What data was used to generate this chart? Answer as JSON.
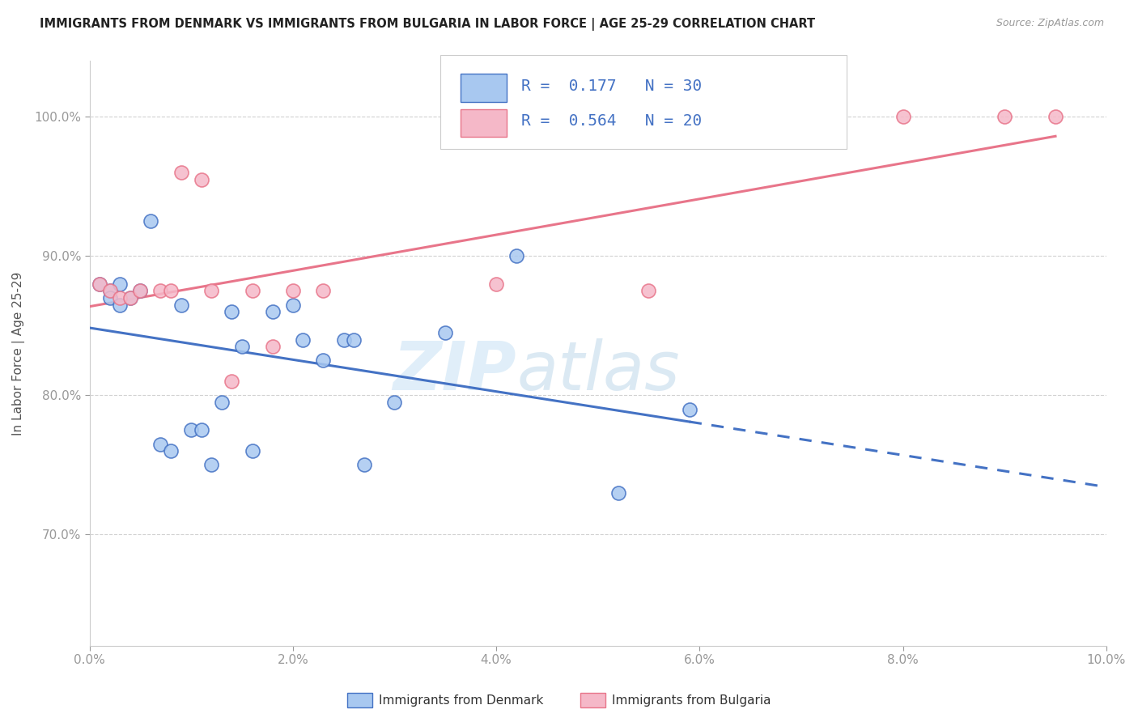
{
  "title": "IMMIGRANTS FROM DENMARK VS IMMIGRANTS FROM BULGARIA IN LABOR FORCE | AGE 25-29 CORRELATION CHART",
  "source": "Source: ZipAtlas.com",
  "ylabel": "In Labor Force | Age 25-29",
  "legend_denmark": "Immigrants from Denmark",
  "legend_bulgaria": "Immigrants from Bulgaria",
  "R_denmark": "0.177",
  "N_denmark": "30",
  "R_bulgaria": "0.564",
  "N_bulgaria": "20",
  "color_denmark": "#a8c8f0",
  "color_bulgaria": "#f5b8c8",
  "color_line_denmark": "#4472c4",
  "color_line_bulgaria": "#e8758a",
  "watermark_zip": "ZIP",
  "watermark_atlas": "atlas",
  "denmark_scatter_x": [
    0.001,
    0.002,
    0.002,
    0.003,
    0.003,
    0.004,
    0.005,
    0.006,
    0.007,
    0.008,
    0.009,
    0.01,
    0.011,
    0.012,
    0.013,
    0.014,
    0.015,
    0.016,
    0.018,
    0.02,
    0.021,
    0.023,
    0.025,
    0.026,
    0.027,
    0.03,
    0.035,
    0.042,
    0.052,
    0.059
  ],
  "denmark_scatter_y": [
    0.88,
    0.875,
    0.87,
    0.865,
    0.88,
    0.87,
    0.875,
    0.925,
    0.765,
    0.76,
    0.865,
    0.775,
    0.775,
    0.75,
    0.795,
    0.86,
    0.835,
    0.76,
    0.86,
    0.865,
    0.84,
    0.825,
    0.84,
    0.84,
    0.75,
    0.795,
    0.845,
    0.9,
    0.73,
    0.79
  ],
  "bulgaria_scatter_x": [
    0.001,
    0.002,
    0.003,
    0.004,
    0.005,
    0.007,
    0.008,
    0.009,
    0.011,
    0.012,
    0.014,
    0.016,
    0.018,
    0.02,
    0.023,
    0.04,
    0.055,
    0.08,
    0.09,
    0.095
  ],
  "bulgaria_scatter_y": [
    0.88,
    0.875,
    0.87,
    0.87,
    0.875,
    0.875,
    0.875,
    0.96,
    0.955,
    0.875,
    0.81,
    0.875,
    0.835,
    0.875,
    0.875,
    0.88,
    0.875,
    1.0,
    1.0,
    1.0
  ],
  "xlim": [
    0.0,
    0.1
  ],
  "ylim": [
    0.62,
    1.04
  ],
  "xtick_vals": [
    0.0,
    0.02,
    0.04,
    0.06,
    0.08,
    0.1
  ],
  "ytick_vals": [
    0.7,
    0.8,
    0.9,
    1.0
  ],
  "background_color": "#ffffff",
  "grid_color": "#cccccc"
}
